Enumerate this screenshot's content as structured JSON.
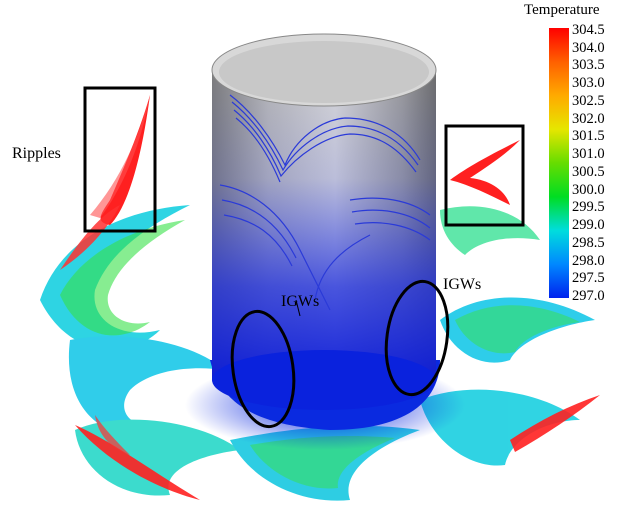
{
  "labels": {
    "ripples": "Ripples",
    "igws_left": "IGWs",
    "igws_right": "IGWs"
  },
  "colorbar": {
    "title": "Temperature",
    "ticks": [
      "304.5",
      "304.0",
      "303.5",
      "303.0",
      "302.5",
      "302.0",
      "301.5",
      "301.0",
      "300.5",
      "300.0",
      "299.5",
      "299.0",
      "298.5",
      "298.0",
      "297.5",
      "297.0"
    ],
    "colors": [
      "#ff0000",
      "#ff6000",
      "#ffaa00",
      "#e6e600",
      "#66dd00",
      "#00dd22",
      "#00dddd",
      "#0088ff",
      "#0022ee"
    ]
  }
}
